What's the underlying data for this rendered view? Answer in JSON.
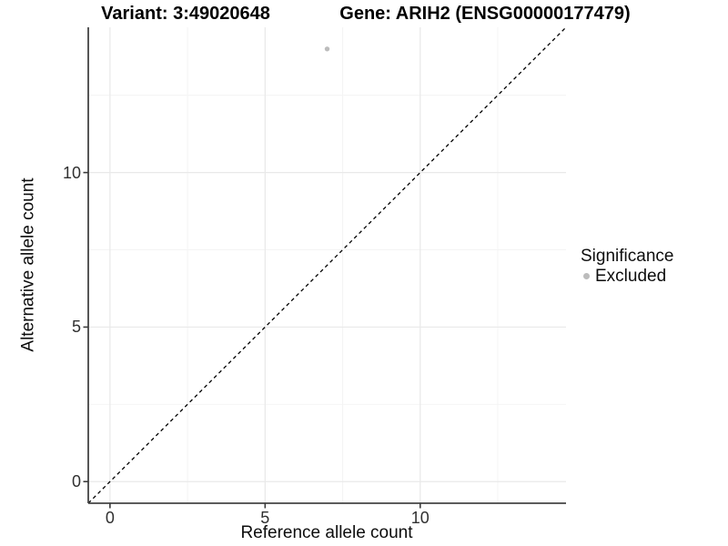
{
  "chart_data": {
    "type": "scatter",
    "title_left": "Variant: 3:49020648",
    "title_right": "Gene: ARIH2 (ENSG00000177479)",
    "xlabel": "Reference allele count",
    "ylabel": "Alternative allele count",
    "xlim": [
      -0.7,
      14.7
    ],
    "ylim": [
      -0.7,
      14.7
    ],
    "x_ticks": [
      0,
      5,
      10
    ],
    "y_ticks": [
      0,
      5,
      10
    ],
    "x_minor_ticks": [
      2.5,
      7.5,
      12.5
    ],
    "y_minor_ticks": [
      2.5,
      7.5,
      12.5
    ],
    "grid": "major and minor, light gray, on white background",
    "reference_line": {
      "kind": "identity",
      "slope": 1,
      "intercept": 0,
      "style": "dashed",
      "color": "#000000"
    },
    "series": [
      {
        "name": "Excluded",
        "color": "#bcbcbc",
        "points": [
          {
            "x": 7,
            "y": 14
          }
        ]
      }
    ],
    "legend": {
      "title": "Significance",
      "position": "right",
      "items": [
        {
          "label": "Excluded",
          "color": "#bcbcbc"
        }
      ]
    }
  },
  "colors": {
    "background": "#ffffff",
    "axis_line": "#444444",
    "tick_mark": "#3a3a3a",
    "tick_label": "#303030",
    "grid_major": "#e9e9e9",
    "grid_minor": "#f4f4f4",
    "point": "#bcbcbc",
    "reference_line": "#000000"
  }
}
